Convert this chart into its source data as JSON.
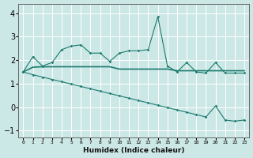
{
  "xlabel": "Humidex (Indice chaleur)",
  "ylabel": "",
  "xlim": [
    -0.5,
    23.5
  ],
  "ylim": [
    -1.3,
    4.4
  ],
  "yticks": [
    -1,
    0,
    1,
    2,
    3,
    4
  ],
  "xtick_labels": [
    "0",
    "1",
    "2",
    "3",
    "4",
    "5",
    "6",
    "7",
    "8",
    "9",
    "10",
    "11",
    "12",
    "13",
    "14",
    "15",
    "16",
    "17",
    "18",
    "19",
    "20",
    "21",
    "22",
    "23"
  ],
  "background_color": "#cce8e6",
  "grid_color": "#ffffff",
  "line_color": "#1a7a6e",
  "line1_x": [
    0,
    1,
    2,
    3,
    4,
    5,
    6,
    7,
    8,
    9,
    10,
    11,
    12,
    13,
    14,
    15,
    16,
    17,
    18,
    19,
    20,
    21,
    22,
    23
  ],
  "line1_y": [
    1.5,
    2.15,
    1.75,
    1.9,
    2.45,
    2.6,
    2.65,
    2.3,
    2.3,
    1.95,
    2.3,
    2.4,
    2.4,
    2.45,
    3.85,
    1.75,
    1.5,
    1.9,
    1.5,
    1.45,
    1.9,
    1.45,
    1.45,
    1.45
  ],
  "line2_x": [
    0,
    1,
    2,
    3,
    4,
    5,
    6,
    7,
    8,
    9,
    10,
    11,
    12,
    13,
    14,
    15,
    16,
    17,
    18,
    19,
    20,
    21,
    22,
    23
  ],
  "line2_y": [
    1.5,
    1.7,
    1.72,
    1.72,
    1.72,
    1.72,
    1.72,
    1.72,
    1.72,
    1.72,
    1.62,
    1.62,
    1.62,
    1.62,
    1.62,
    1.62,
    1.55,
    1.55,
    1.55,
    1.55,
    1.55,
    1.55,
    1.55,
    1.55
  ],
  "line3_x": [
    0,
    1,
    2,
    3,
    4,
    5,
    6,
    7,
    8,
    9,
    10,
    11,
    12,
    13,
    14,
    15,
    16,
    17,
    18,
    19,
    20,
    21,
    22,
    23
  ],
  "line3_y": [
    1.5,
    1.38,
    1.28,
    1.18,
    1.08,
    0.98,
    0.88,
    0.78,
    0.68,
    0.58,
    0.48,
    0.38,
    0.28,
    0.18,
    0.08,
    -0.02,
    -0.12,
    -0.22,
    -0.32,
    -0.42,
    0.05,
    -0.55,
    -0.6,
    -0.55
  ]
}
